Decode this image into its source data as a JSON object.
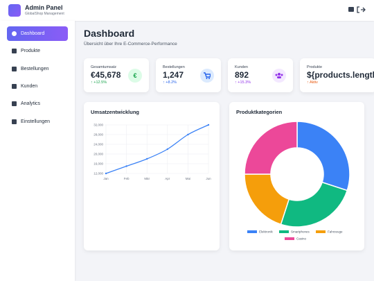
{
  "header": {
    "title": "Admin Panel",
    "subtitle": "GlobalShop Management"
  },
  "sidebar": {
    "items": [
      "Dashboard",
      "Produkte",
      "Bestellungen",
      "Kunden",
      "Analytics",
      "Einstellungen"
    ]
  },
  "page": {
    "title": "Dashboard",
    "subtitle": "Übersicht über Ihre E-Commerce-Performance"
  },
  "stats": [
    {
      "label": "Gesamtumsatz",
      "value": "€45,678",
      "change": "↑ +12.5%",
      "icon": "€"
    },
    {
      "label": "Bestellungen",
      "value": "1,247",
      "change": "↑ +8.2%"
    },
    {
      "label": "Kunden",
      "value": "892",
      "change": "↑ +15.3%"
    },
    {
      "label": "Produkte",
      "value": "${products.length}",
      "change": "↑ Aktiv"
    }
  ],
  "chart_data": [
    {
      "type": "line",
      "title": "Umsatzentwicklung",
      "categories": [
        "Jan",
        "Feb",
        "Mär",
        "Apr",
        "Mai",
        "Jun"
      ],
      "values": [
        12000,
        15000,
        18000,
        22000,
        28000,
        32000
      ],
      "color": "#3b82f6",
      "ylim": [
        12000,
        32000
      ],
      "yticks": [
        {
          "value": 12000,
          "label": "12,000"
        },
        {
          "value": 16000,
          "label": "16,000"
        },
        {
          "value": 20000,
          "label": "20,000"
        },
        {
          "value": 24000,
          "label": "24,000"
        },
        {
          "value": 28000,
          "label": "28,000"
        },
        {
          "value": 32000,
          "label": "32,000"
        }
      ],
      "grid": true
    },
    {
      "type": "pie",
      "title": "Produktkategorien",
      "categories": [
        "Elektronik",
        "Smartphones",
        "Fahrzeuge",
        "Casino"
      ],
      "values": [
        30,
        25,
        20,
        25
      ],
      "colors": [
        "#3b82f6",
        "#10b981",
        "#f59e0b",
        "#ec4899"
      ],
      "donut": true,
      "legend": "bottom"
    }
  ]
}
